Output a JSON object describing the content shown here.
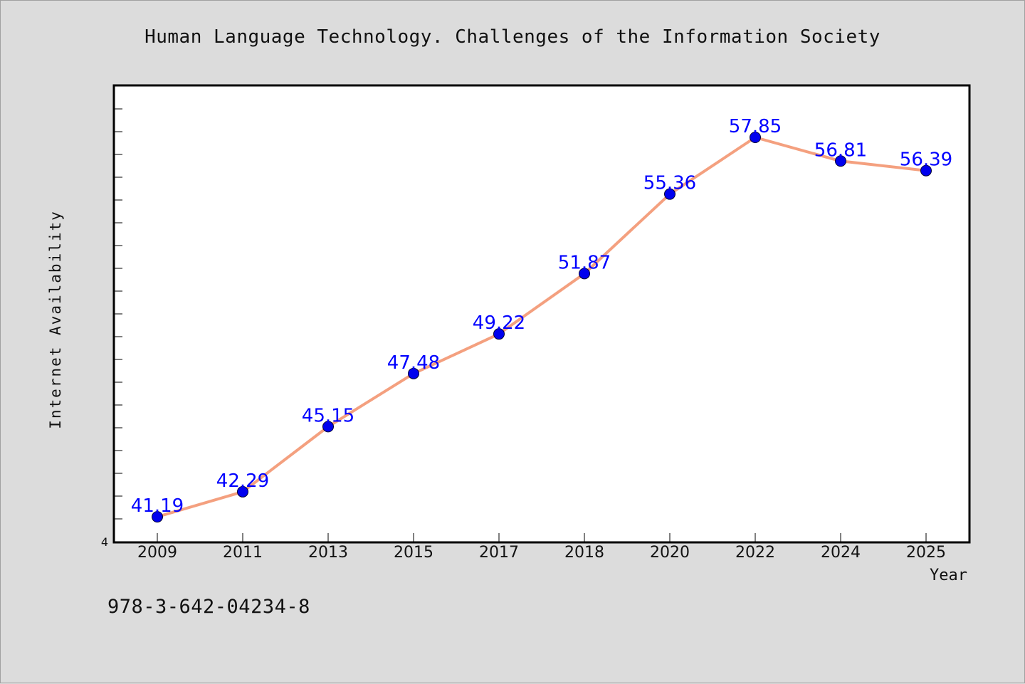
{
  "chart_data": {
    "type": "line",
    "title": "Human Language Technology. Challenges of the Information Society",
    "xlabel": "Year",
    "ylabel": "Internet Availability",
    "categories": [
      "2009",
      "2011",
      "2013",
      "2015",
      "2017",
      "2018",
      "2020",
      "2022",
      "2024",
      "2025"
    ],
    "series": [
      {
        "values": [
          41.19,
          42.29,
          45.15,
          47.48,
          49.22,
          51.87,
          55.36,
          57.85,
          56.81,
          56.39
        ],
        "data_labels": [
          "41.19",
          "42.29",
          "45.15",
          "47.48",
          "49.22",
          "51.87",
          "55.36",
          "57.85",
          "56.81",
          "56.39"
        ]
      }
    ],
    "ylim": [
      40.1,
      60.1
    ],
    "y_min_tick_label": "4",
    "grid": false,
    "legend": "none",
    "colors": {
      "line": "#f4a07f",
      "marker": "#0000ee",
      "data_label": "#0000ff",
      "plot_background": "#ffffff",
      "figure_background": "#dcdcdc"
    }
  },
  "footer_text": "978-3-642-04234-8"
}
